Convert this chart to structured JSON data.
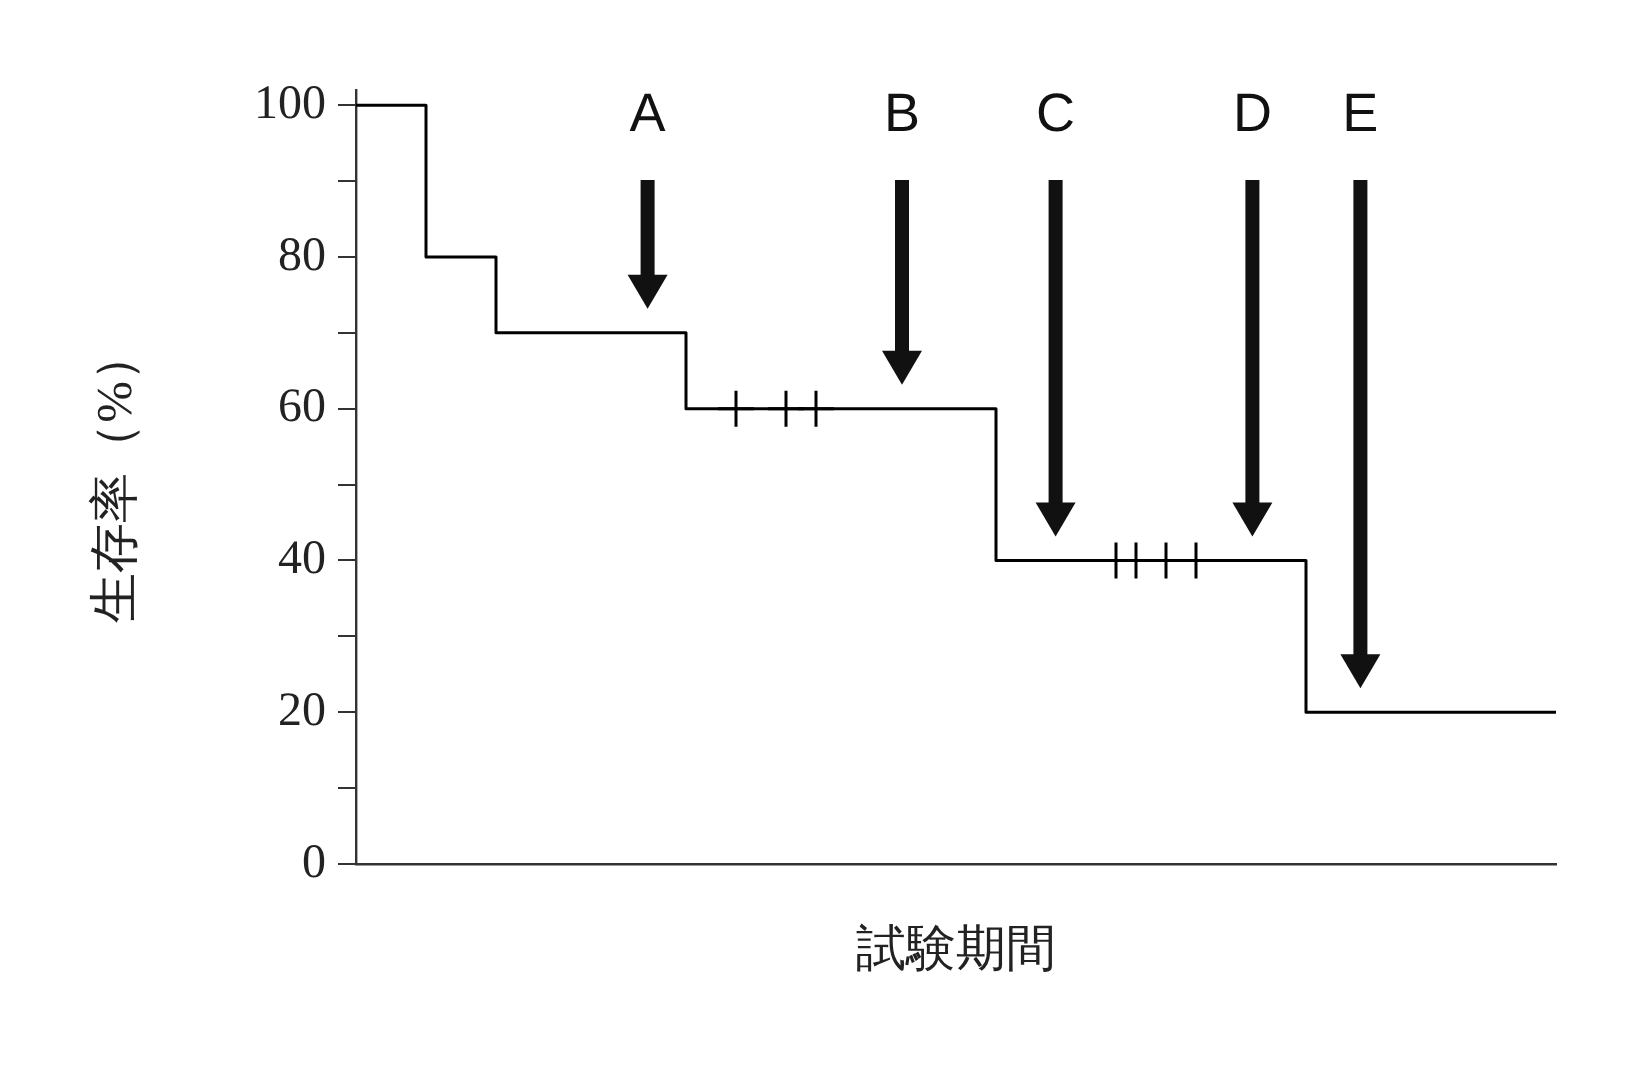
{
  "chart_data": {
    "type": "step",
    "xlabel": "試験期間",
    "ylabel": "生存率（%）",
    "categories": [
      null,
      null,
      null,
      null,
      null,
      null,
      null,
      null,
      null,
      null,
      null,
      null,
      null,
      null,
      null,
      null,
      null,
      null,
      null,
      null,
      null,
      null,
      null,
      null,
      null,
      null,
      null,
      null,
      null,
      null,
      null,
      null,
      null,
      null,
      null,
      null,
      null,
      null,
      null,
      null,
      null,
      null,
      null,
      null,
      null,
      null,
      null,
      null,
      null,
      null,
      null,
      null,
      null,
      null,
      null,
      null,
      null,
      null,
      null,
      null,
      null,
      null,
      null,
      null,
      null,
      null,
      null,
      null,
      null,
      null,
      null,
      null,
      null,
      null,
      null,
      null,
      null,
      null,
      null,
      null,
      null,
      null,
      null,
      null,
      null,
      null,
      null,
      null,
      null,
      null,
      null,
      null,
      null,
      null,
      null,
      null,
      null,
      null,
      null,
      null,
      null,
      null,
      null,
      null,
      null,
      null,
      null,
      null,
      null,
      null,
      null,
      null,
      null,
      null,
      null,
      null,
      null,
      null,
      null,
      null,
      null
    ],
    "ylim": [
      0,
      102
    ],
    "yticks": [
      0,
      {
        "value": 10,
        "label": null
      },
      20,
      {
        "value": 30,
        "label": null
      },
      40,
      {
        "value": 50,
        "label": null
      },
      60,
      {
        "value": 70,
        "label": null
      },
      80,
      {
        "value": 90,
        "label": null
      },
      100
    ],
    "tick_labels": "y",
    "grid": false,
    "legend": false,
    "series": [
      {
        "color": "#000000",
        "marker": "none",
        "values": [
          100,
          100,
          100,
          100,
          100,
          100,
          100,
          80,
          80,
          80,
          80,
          80,
          80,
          80,
          70,
          70,
          70,
          70,
          70,
          70,
          70,
          70,
          70,
          70,
          70,
          70,
          70,
          70,
          70,
          70,
          70,
          70,
          70,
          60,
          60,
          60,
          60,
          60,
          60,
          60,
          60,
          60,
          60,
          60,
          60,
          60,
          60,
          60,
          60,
          60,
          60,
          60,
          60,
          60,
          60,
          60,
          60,
          60,
          60,
          60,
          60,
          60,
          60,
          60,
          40,
          40,
          40,
          40,
          40,
          40,
          40,
          40,
          40,
          40,
          40,
          40,
          40,
          40,
          40,
          40,
          40,
          40,
          40,
          40,
          40,
          40,
          40,
          40,
          40,
          40,
          40,
          40,
          40,
          40,
          40,
          20,
          20,
          20,
          20,
          20,
          20,
          20,
          20,
          20,
          20,
          20,
          20,
          20,
          20,
          20,
          20,
          20,
          20,
          20,
          20,
          20,
          20,
          20,
          20,
          20,
          20
        ]
      },
      {
        "type": "scatter",
        "color": "#000000",
        "marker": "cross",
        "values": [
          null,
          null,
          null,
          null,
          null,
          null,
          null,
          null,
          null,
          null,
          null,
          null,
          null,
          null,
          null,
          null,
          null,
          null,
          null,
          null,
          null,
          null,
          null,
          null,
          null,
          null,
          null,
          null,
          null,
          null,
          null,
          null,
          null,
          null,
          null,
          null,
          null,
          null,
          60,
          null,
          null,
          null,
          null,
          60,
          null,
          null,
          60,
          null,
          null,
          null,
          null,
          null,
          null,
          null,
          null,
          null,
          null,
          null,
          null,
          null,
          null,
          null,
          null,
          null,
          null,
          null,
          null,
          null,
          null,
          null,
          null,
          null,
          null,
          null,
          null,
          null,
          40,
          null,
          40,
          null,
          null,
          40,
          null,
          null,
          40,
          null,
          null,
          null,
          null,
          null,
          null,
          null,
          null,
          null,
          null,
          null,
          null,
          null,
          null,
          null,
          null,
          null,
          null,
          null,
          null,
          null,
          null,
          null,
          null,
          null,
          null,
          null,
          null,
          null,
          null,
          null,
          null,
          null,
          null,
          null,
          null
        ]
      }
    ],
    "annotations": [
      "A",
      "B",
      "C",
      "D",
      "E"
    ]
  }
}
